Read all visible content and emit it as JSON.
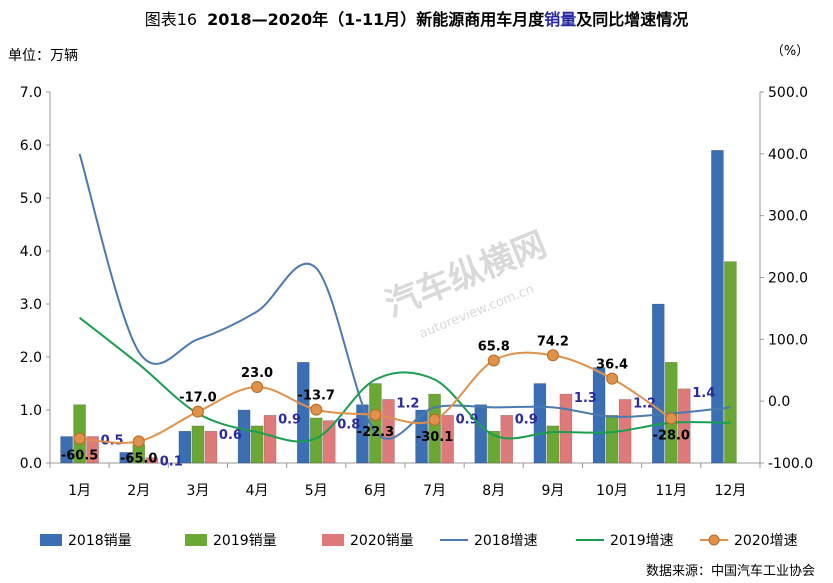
{
  "title": {
    "label": "图表16",
    "prefix": "2018—2020年（1-11月）新能源商用车月度",
    "highlight": "销量",
    "suffix": "及同比增速情况"
  },
  "footer": "数据来源：中国汽车工业协会",
  "watermark": {
    "text": "汽车纵横网",
    "url": "autoreview.com.cn"
  },
  "chart_data": {
    "type": "bar",
    "categories": [
      "1月",
      "2月",
      "3月",
      "4月",
      "5月",
      "6月",
      "7月",
      "8月",
      "9月",
      "10月",
      "11月",
      "12月"
    ],
    "y_left": {
      "unit_label": "单位：万辆",
      "ylim": [
        0,
        7
      ],
      "ticks": [
        "0.0",
        "1.0",
        "2.0",
        "3.0",
        "4.0",
        "5.0",
        "6.0",
        "7.0"
      ]
    },
    "y_right": {
      "unit_label": "（%）",
      "ylim": [
        -100,
        500
      ],
      "ticks": [
        "-100.0",
        "0.0",
        "100.0",
        "200.0",
        "300.0",
        "400.0",
        "500.0"
      ]
    },
    "bar_series": [
      {
        "name": "2018销量",
        "color": "#3a6fb5",
        "values": [
          0.5,
          0.2,
          0.6,
          1.0,
          1.9,
          1.1,
          1.0,
          1.1,
          1.5,
          1.8,
          3.0,
          5.9
        ]
      },
      {
        "name": "2019销量",
        "color": "#6aa833",
        "values": [
          1.1,
          0.35,
          0.7,
          0.7,
          0.85,
          1.5,
          1.3,
          0.6,
          0.7,
          0.9,
          1.9,
          3.8
        ]
      },
      {
        "name": "2020销量",
        "color": "#e07a7a",
        "values": [
          0.5,
          0.1,
          0.6,
          0.9,
          0.8,
          1.2,
          0.9,
          0.9,
          1.3,
          1.2,
          1.4,
          null
        ]
      }
    ],
    "line_series": [
      {
        "name": "2018增速",
        "color": "#4a7ab0",
        "values": [
          400,
          80,
          100,
          145,
          215,
          -50,
          -10,
          -10,
          -10,
          -25,
          -20,
          -10
        ]
      },
      {
        "name": "2019增速",
        "color": "#1a9e50",
        "values": [
          135,
          60,
          -20,
          -50,
          -60,
          35,
          35,
          -55,
          -50,
          -50,
          -35,
          -35
        ]
      }
    ],
    "marker_series": {
      "name": "2020增速",
      "color": "#e0924a",
      "values": [
        -60.5,
        -65.0,
        -17.0,
        23.0,
        -13.7,
        -22.3,
        -30.1,
        65.8,
        74.2,
        36.4,
        -28.0,
        null
      ],
      "labels": [
        "-60.5",
        "-65.0",
        "-17.0",
        "23.0",
        "-13.7",
        "-22.3",
        "-30.1",
        "65.8",
        "74.2",
        "36.4",
        "-28.0",
        ""
      ]
    },
    "bar_labels_2020": [
      "0.5",
      "0.1",
      "0.6",
      "0.9",
      "0.8",
      "1.2",
      "0.9",
      "0.9",
      "1.3",
      "1.2",
      "1.4",
      ""
    ],
    "legend": {
      "position": "bottom"
    },
    "grid": false
  }
}
